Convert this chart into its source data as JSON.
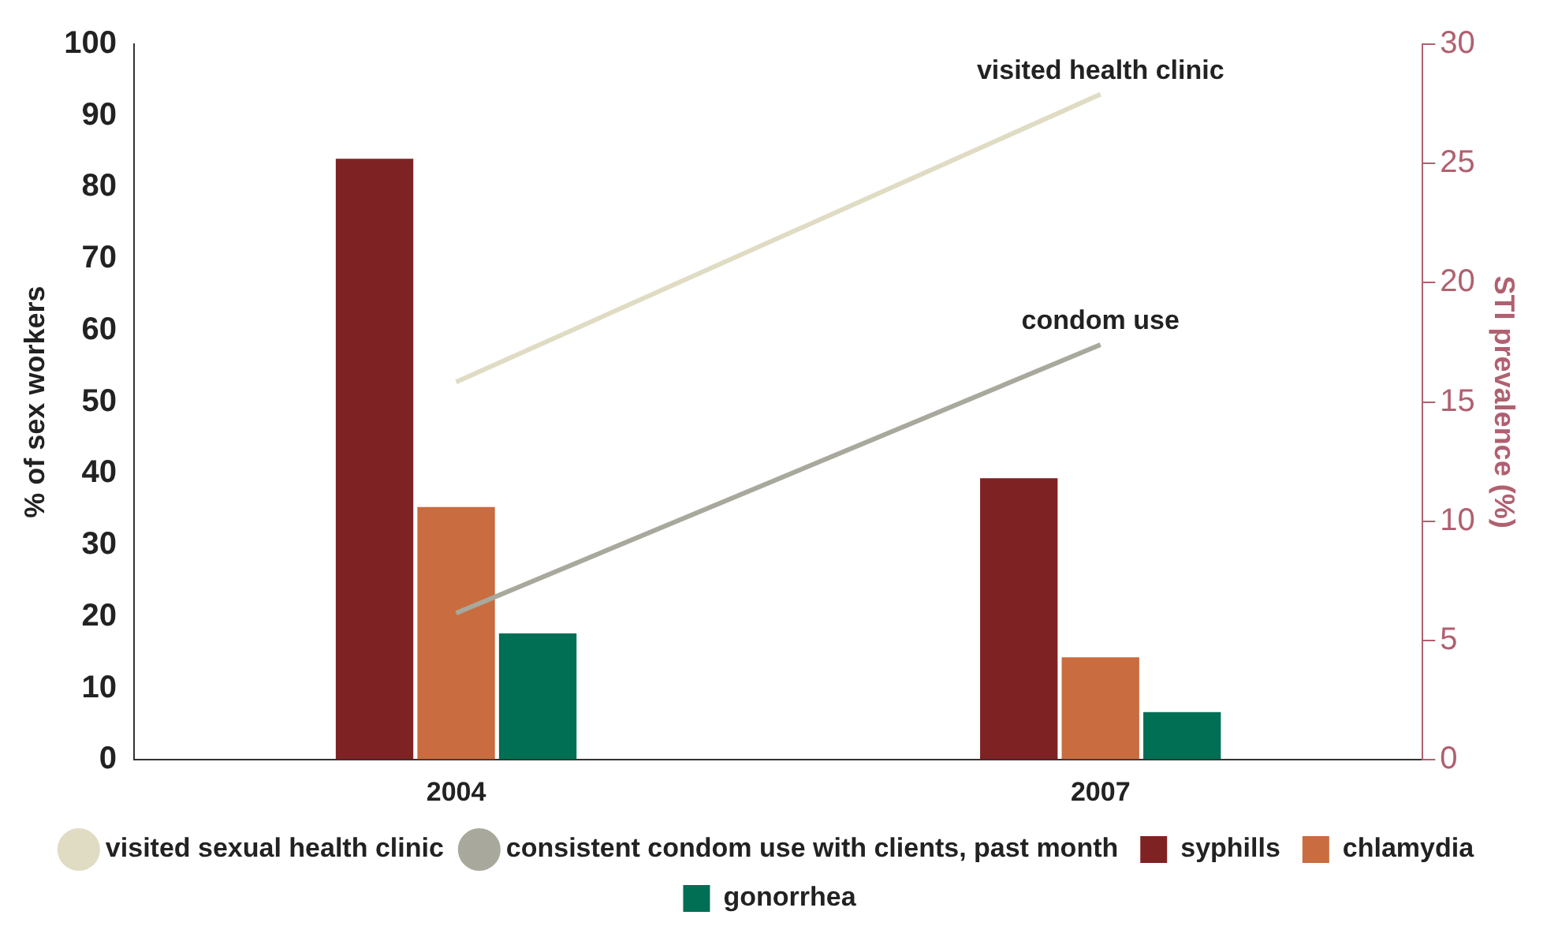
{
  "chart_data": {
    "type": "bar",
    "categories": [
      "2004",
      "2007"
    ],
    "ylabel": "% of sex workers",
    "y2label": "STI prevalence (%)",
    "ylim": [
      0,
      100
    ],
    "yticks": [
      0,
      10,
      20,
      30,
      40,
      50,
      60,
      70,
      80,
      90,
      100
    ],
    "y2lim": [
      0,
      30
    ],
    "y2ticks": [
      0,
      5,
      10,
      15,
      20,
      25,
      30
    ],
    "series": [
      {
        "name": "syphills",
        "color": "#7f2224",
        "values": [
          25.2,
          11.8
        ],
        "axis": "y2"
      },
      {
        "name": "chlamydia",
        "color": "#c96c3f",
        "values": [
          10.6,
          4.3
        ],
        "axis": "y2"
      },
      {
        "name": "gonorrhea",
        "color": "#006f53",
        "values": [
          5.3,
          2.0
        ],
        "axis": "y2"
      },
      {
        "name": "visited sexual health clinic",
        "type": "line",
        "color": "#e0dcc4",
        "values": [
          52.8,
          93
        ],
        "axis": "y"
      },
      {
        "name": "consistent condom use with clients, past month",
        "type": "line",
        "color": "#a8a89c",
        "values": [
          20.5,
          58
        ],
        "axis": "y"
      }
    ],
    "annotations": [
      {
        "text": "visited health clinic",
        "x": "2007",
        "y": 93
      },
      {
        "text": "condom use",
        "x": "2007",
        "y": 58
      }
    ],
    "legend": "bottom",
    "grid": false,
    "marker": "none"
  }
}
